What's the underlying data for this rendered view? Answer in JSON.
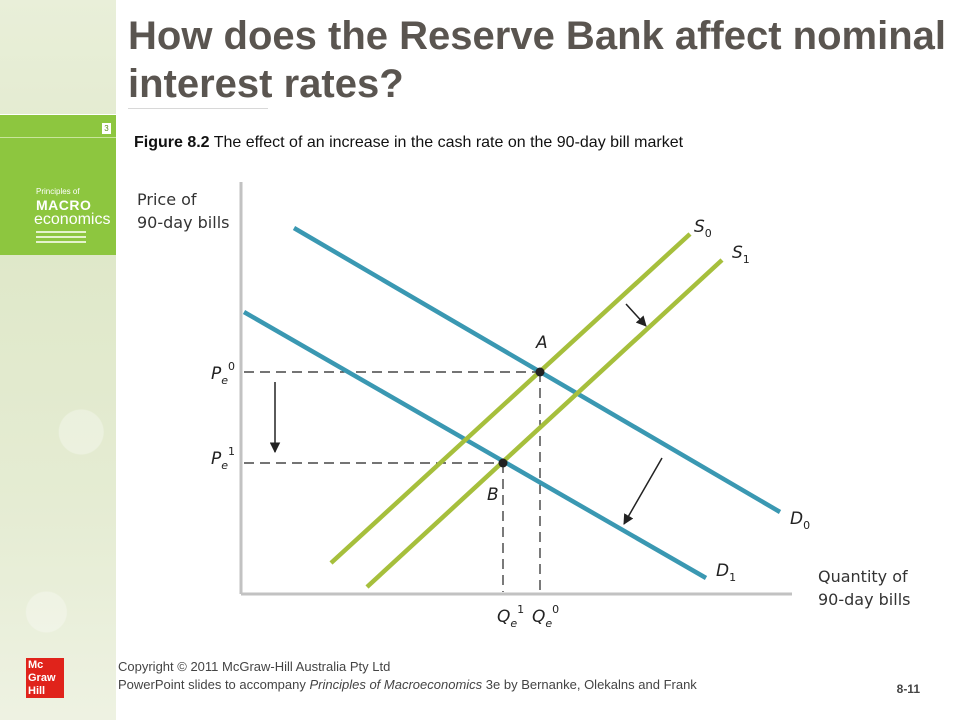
{
  "slide": {
    "title": "How does the Reserve Bank affect nominal interest rates?",
    "caption_bold": "Figure 8.2",
    "caption_rest": " The effect of an increase in the cash rate on the 90-day bill market",
    "page_number": "8-11"
  },
  "book": {
    "number": "3",
    "line1": "Principles of",
    "line2": "MACRO",
    "line3": "economics"
  },
  "diagram": {
    "y_axis_label": [
      "Price of",
      "90-day bills"
    ],
    "x_axis_label": [
      "Quantity of",
      "90-day bills"
    ],
    "curves": {
      "s0": {
        "name": "S",
        "sub": "0"
      },
      "s1": {
        "name": "S",
        "sub": "1"
      },
      "d0": {
        "name": "D",
        "sub": "0"
      },
      "d1": {
        "name": "D",
        "sub": "1"
      }
    },
    "points": {
      "a": "A",
      "b": "B"
    },
    "price_ticks": {
      "p0": {
        "main": "P",
        "sub": "e",
        "sup": "0"
      },
      "p1": {
        "main": "P",
        "sub": "e",
        "sup": "1"
      }
    },
    "qty_ticks": {
      "q1": {
        "main": "Q",
        "sub": "e",
        "sup": "1"
      },
      "q0": {
        "main": "Q",
        "sub": "e",
        "sup": "0"
      }
    },
    "colors": {
      "demand": "#3a98b2",
      "supply": "#a6bf3c",
      "axis": "#c2c2c2"
    }
  },
  "logo": {
    "line1": "Mc",
    "line2": "Graw",
    "line3": "Hill"
  },
  "footer": {
    "line1": "Copyright © 2011 McGraw-Hill Australia Pty Ltd",
    "line2_prefix": "PowerPoint slides to accompany ",
    "line2_italic": "Principles of Macroeconomics",
    "line2_suffix": " 3e by  Bernanke, Olekalns and Frank"
  }
}
